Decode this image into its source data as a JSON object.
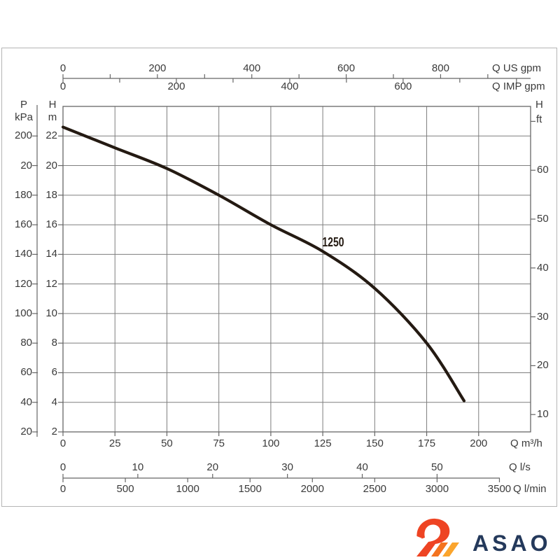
{
  "chart_data": {
    "type": "line",
    "curve_label": "1250",
    "series": [
      {
        "name": "1250",
        "x_unit": "m3/h",
        "y_unit": "m",
        "points": [
          [
            0,
            22.6
          ],
          [
            25,
            21.2
          ],
          [
            50,
            19.8
          ],
          [
            75,
            18
          ],
          [
            100,
            16
          ],
          [
            125,
            14.2
          ],
          [
            150,
            11.7
          ],
          [
            175,
            8
          ],
          [
            193,
            4.1
          ]
        ]
      }
    ],
    "axes": {
      "q_m3h": {
        "unit": "Q m³/h",
        "ticks": [
          0,
          25,
          50,
          75,
          100,
          125,
          150,
          175,
          200
        ],
        "range": [
          0,
          225
        ]
      },
      "q_ls": {
        "unit": "Q l/s",
        "ticks": [
          0,
          10,
          20,
          30,
          40,
          50
        ]
      },
      "q_lmin": {
        "unit": "Q l/min",
        "ticks": [
          0,
          500,
          1000,
          1500,
          2000,
          2500,
          3000,
          3500
        ]
      },
      "q_usgpm": {
        "unit": "Q US gpm",
        "ticks": [
          0,
          200,
          400,
          600,
          800
        ]
      },
      "q_impgpm": {
        "unit": "Q IMP gpm",
        "ticks": [
          0,
          200,
          400,
          600
        ]
      },
      "head_m": {
        "symbol": "H",
        "unit": "m",
        "ticks": [
          22,
          20,
          18,
          16,
          14,
          12,
          10,
          8,
          6,
          4,
          2
        ],
        "range": [
          2,
          24
        ]
      },
      "p_kpa": {
        "symbol": "P",
        "unit": "kPa",
        "ticks": [
          "200",
          "20",
          "180",
          "160",
          "140",
          "120",
          "100",
          "80",
          "60",
          "40",
          "20"
        ]
      },
      "head_ft": {
        "symbol": "H",
        "unit": "ft",
        "ticks": [
          60,
          50,
          40,
          30,
          20,
          10
        ]
      }
    },
    "grid": true,
    "legend": false
  },
  "logo": {
    "text": "ASAO",
    "colors": {
      "swan": "#ee4423",
      "stripe_mid": "#f4731f",
      "stripe_light": "#fba52d",
      "text": "#24395b"
    }
  }
}
